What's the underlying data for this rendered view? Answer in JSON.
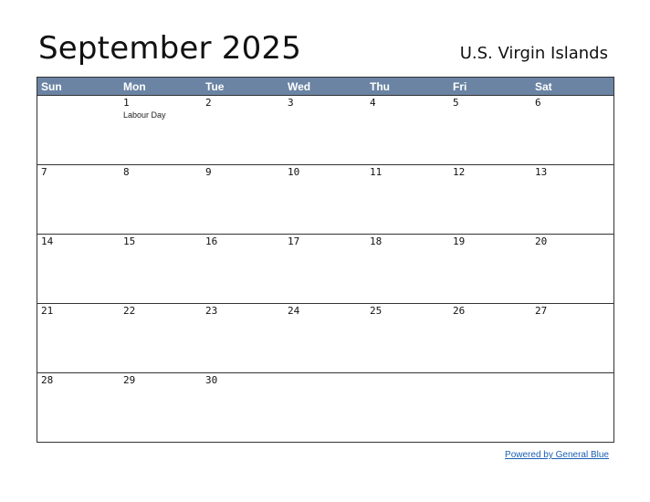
{
  "title": "September 2025",
  "region": "U.S. Virgin Islands",
  "colors": {
    "header_bg": "#6b84a4",
    "header_text": "#ffffff",
    "link": "#1a5fb4"
  },
  "weekdays": [
    "Sun",
    "Mon",
    "Tue",
    "Wed",
    "Thu",
    "Fri",
    "Sat"
  ],
  "weeks": [
    {
      "days": [
        {
          "num": ""
        },
        {
          "num": "1",
          "event": "Labour Day"
        },
        {
          "num": "2"
        },
        {
          "num": "3"
        },
        {
          "num": "4"
        },
        {
          "num": "5"
        },
        {
          "num": "6"
        }
      ]
    },
    {
      "days": [
        {
          "num": "7"
        },
        {
          "num": "8"
        },
        {
          "num": "9"
        },
        {
          "num": "10"
        },
        {
          "num": "11"
        },
        {
          "num": "12"
        },
        {
          "num": "13"
        }
      ]
    },
    {
      "days": [
        {
          "num": "14"
        },
        {
          "num": "15"
        },
        {
          "num": "16"
        },
        {
          "num": "17"
        },
        {
          "num": "18"
        },
        {
          "num": "19"
        },
        {
          "num": "20"
        }
      ]
    },
    {
      "days": [
        {
          "num": "21"
        },
        {
          "num": "22"
        },
        {
          "num": "23"
        },
        {
          "num": "24"
        },
        {
          "num": "25"
        },
        {
          "num": "26"
        },
        {
          "num": "27"
        }
      ]
    },
    {
      "days": [
        {
          "num": "28"
        },
        {
          "num": "29"
        },
        {
          "num": "30"
        },
        {
          "num": ""
        },
        {
          "num": ""
        },
        {
          "num": ""
        },
        {
          "num": ""
        }
      ]
    }
  ],
  "footer": {
    "link_text": "Powered by General Blue"
  }
}
